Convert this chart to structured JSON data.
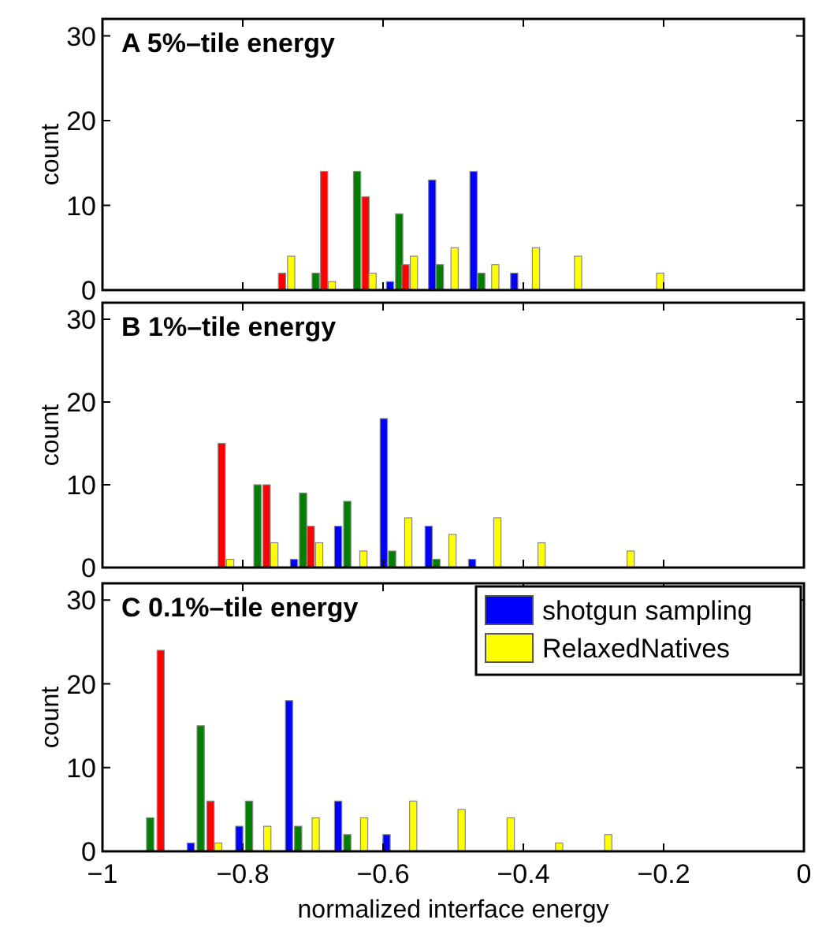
{
  "chart_data": [
    {
      "type": "bar",
      "title": "A  5%–tile energy",
      "ylabel": "count",
      "xlim": [
        -1,
        0
      ],
      "xticks": [
        -1,
        -0.8,
        -0.6,
        -0.4,
        -0.2,
        0
      ],
      "ylim": [
        0,
        32
      ],
      "yticks": [
        0,
        10,
        20,
        30
      ],
      "tick_labels": "y",
      "legend": false,
      "series": [
        {
          "color": "#0000ff",
          "x": [
            -0.59,
            -0.53,
            -0.471,
            -0.413
          ],
          "values": [
            1,
            13,
            14,
            2
          ]
        },
        {
          "color": "#007f00",
          "x": [
            -0.696,
            -0.637,
            -0.577,
            -0.519,
            -0.46
          ],
          "values": [
            2,
            14,
            9,
            3,
            2
          ]
        },
        {
          "color": "#ff0000",
          "x": [
            -0.744,
            -0.684,
            -0.625,
            -0.568
          ],
          "values": [
            2,
            14,
            11,
            3
          ]
        },
        {
          "color": "#ffff00",
          "x": [
            -0.731,
            -0.673,
            -0.615,
            -0.556,
            -0.498,
            -0.44,
            -0.382,
            -0.322,
            -0.205
          ],
          "values": [
            4,
            1,
            2,
            4,
            5,
            3,
            5,
            4,
            2
          ]
        }
      ]
    },
    {
      "type": "bar",
      "title": "B  1%–tile energy",
      "ylabel": "count",
      "xlim": [
        -1,
        0
      ],
      "xticks": [
        -1,
        -0.8,
        -0.6,
        -0.4,
        -0.2,
        0
      ],
      "ylim": [
        0,
        32
      ],
      "yticks": [
        0,
        10,
        20,
        30
      ],
      "tick_labels": "y",
      "legend": false,
      "series": [
        {
          "color": "#0000ff",
          "x": [
            -0.727,
            -0.664,
            -0.599,
            -0.535,
            -0.473
          ],
          "values": [
            1,
            5,
            18,
            5,
            1
          ]
        },
        {
          "color": "#007f00",
          "x": [
            -0.779,
            -0.714,
            -0.651,
            -0.587,
            -0.524
          ],
          "values": [
            10,
            9,
            8,
            2,
            1
          ]
        },
        {
          "color": "#ff0000",
          "x": [
            -0.83,
            -0.766,
            -0.703
          ],
          "values": [
            15,
            10,
            5
          ]
        },
        {
          "color": "#ffff00",
          "x": [
            -0.818,
            -0.755,
            -0.691,
            -0.628,
            -0.564,
            -0.501,
            -0.437,
            -0.374,
            -0.247
          ],
          "values": [
            1,
            3,
            3,
            2,
            6,
            4,
            6,
            3,
            2
          ]
        }
      ]
    },
    {
      "type": "bar",
      "title": "C  0.1%–tile energy",
      "xlabel": "normalized interface energy",
      "ylabel": "count",
      "xlim": [
        -1,
        0
      ],
      "xticks": [
        -1,
        -0.8,
        -0.6,
        -0.4,
        -0.2,
        0
      ],
      "ylim": [
        0,
        32
      ],
      "yticks": [
        0,
        10,
        20,
        30
      ],
      "legend": "top right",
      "series": [
        {
          "name": "shotgun sampling",
          "color": "#0000ff",
          "x": [
            -0.874,
            -0.805,
            -0.734,
            -0.664,
            -0.595
          ],
          "values": [
            1,
            3,
            18,
            6,
            2
          ]
        },
        {
          "color": "#007f00",
          "x": [
            -0.932,
            -0.86,
            -0.791,
            -0.721,
            -0.651
          ],
          "values": [
            4,
            15,
            6,
            3,
            2
          ]
        },
        {
          "color": "#ff0000",
          "x": [
            -0.917,
            -0.846
          ],
          "values": [
            24,
            6
          ]
        },
        {
          "name": "RelaxedNatives",
          "color": "#ffff00",
          "x": [
            -0.835,
            -0.765,
            -0.696,
            -0.627,
            -0.557,
            -0.488,
            -0.418,
            -0.349,
            -0.279
          ],
          "values": [
            1,
            3,
            4,
            4,
            6,
            5,
            4,
            1,
            2
          ]
        }
      ]
    }
  ]
}
